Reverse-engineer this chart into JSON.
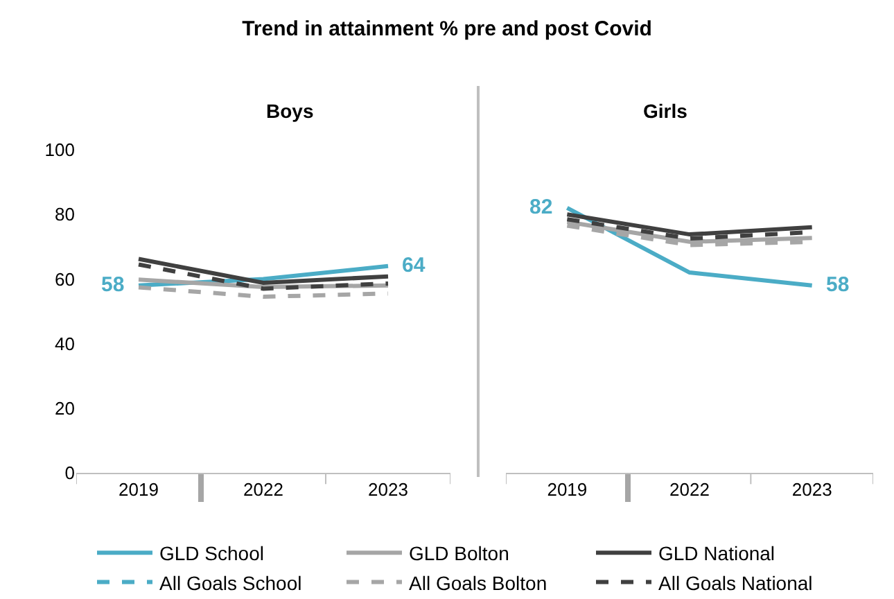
{
  "chart_data": [
    {
      "type": "line",
      "title": "Boys",
      "annotations": [
        "Trend in attainment % pre and post Covid"
      ],
      "categories": [
        "2019",
        "2022",
        "2023"
      ],
      "ylim": [
        0,
        100
      ],
      "yticks": [
        0,
        20,
        40,
        60,
        80,
        100
      ],
      "grid": false,
      "legend": "bottom",
      "marker": "none",
      "series": [
        {
          "name": "GLD School",
          "color": "#4bacc6",
          "line_style": "solid",
          "values": [
            58,
            60,
            64
          ],
          "value_labels": [
            "58",
            null,
            "64"
          ]
        },
        {
          "name": "GLD Bolton",
          "color": "#a6a6a6",
          "line_style": "solid",
          "values": [
            59.8,
            57.5,
            58
          ]
        },
        {
          "name": "GLD National",
          "color": "#404040",
          "line_style": "solid",
          "values": [
            66.2,
            58.8,
            60.8
          ]
        },
        {
          "name": "All Goals School",
          "color": "#4bacc6",
          "line_style": "dashed",
          "values": [
            null,
            null,
            null
          ]
        },
        {
          "name": "All Goals Bolton",
          "color": "#a6a6a6",
          "line_style": "dashed",
          "values": [
            57.4,
            54.5,
            55.5
          ]
        },
        {
          "name": "All Goals National",
          "color": "#404040",
          "line_style": "dashed",
          "values": [
            64.5,
            57,
            58.6
          ]
        }
      ]
    },
    {
      "type": "line",
      "title": "Girls",
      "categories": [
        "2019",
        "2022",
        "2023"
      ],
      "ylim": [
        0,
        100
      ],
      "yticks": [
        0,
        20,
        40,
        60,
        80,
        100
      ],
      "tick_labels": "x",
      "grid": false,
      "marker": "none",
      "series": [
        {
          "color": "#4bacc6",
          "line_style": "solid",
          "values": [
            82,
            62,
            58
          ],
          "value_labels": [
            "82",
            null,
            "58"
          ]
        },
        {
          "color": "#a6a6a6",
          "line_style": "solid",
          "values": [
            77.7,
            71.5,
            72.7
          ]
        },
        {
          "color": "#404040",
          "line_style": "solid",
          "values": [
            80,
            73.8,
            76
          ]
        },
        {
          "color": "#a6a6a6",
          "line_style": "dashed",
          "values": [
            76.5,
            70.5,
            71.5
          ]
        },
        {
          "color": "#404040",
          "line_style": "dashed",
          "values": [
            78.5,
            72.5,
            74.5
          ]
        }
      ]
    }
  ]
}
